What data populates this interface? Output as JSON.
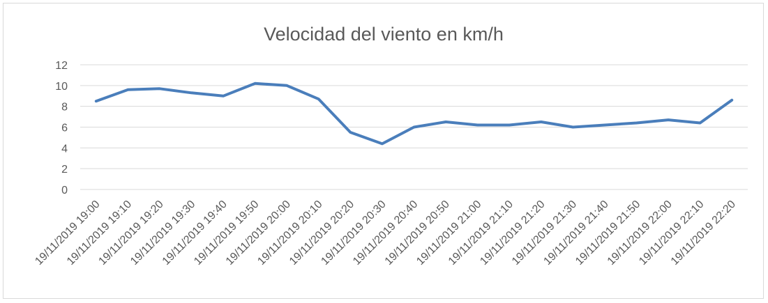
{
  "chart_data": {
    "type": "line",
    "title": "Velocidad del viento en km/h",
    "xlabel": "",
    "ylabel": "",
    "ylim": [
      0,
      12
    ],
    "yticks": [
      0,
      2,
      4,
      6,
      8,
      10,
      12
    ],
    "grid": true,
    "legend": "none",
    "colors": {
      "series": "#4a7ebb",
      "grid": "#d9d9d9",
      "text": "#595959"
    },
    "categories": [
      "19/11/2019 19:00",
      "19/11/2019 19:10",
      "19/11/2019 19:20",
      "19/11/2019 19:30",
      "19/11/2019 19:40",
      "19/11/2019 19:50",
      "19/11/2019 20:00",
      "19/11/2019 20:10",
      "19/11/2019 20:20",
      "19/11/2019 20:30",
      "19/11/2019 20:40",
      "19/11/2019 20:50",
      "19/11/2019 21:00",
      "19/11/2019 21:10",
      "19/11/2019 21:20",
      "19/11/2019 21:30",
      "19/11/2019 21:40",
      "19/11/2019 21:50",
      "19/11/2019 22:00",
      "19/11/2019 22:10",
      "19/11/2019 22:20"
    ],
    "series": [
      {
        "values": [
          8.5,
          9.6,
          9.7,
          9.3,
          9.0,
          10.2,
          10.0,
          8.7,
          5.5,
          4.4,
          6.0,
          6.5,
          6.2,
          6.2,
          6.5,
          6.0,
          6.2,
          6.4,
          6.7,
          6.4,
          8.6
        ]
      }
    ]
  }
}
